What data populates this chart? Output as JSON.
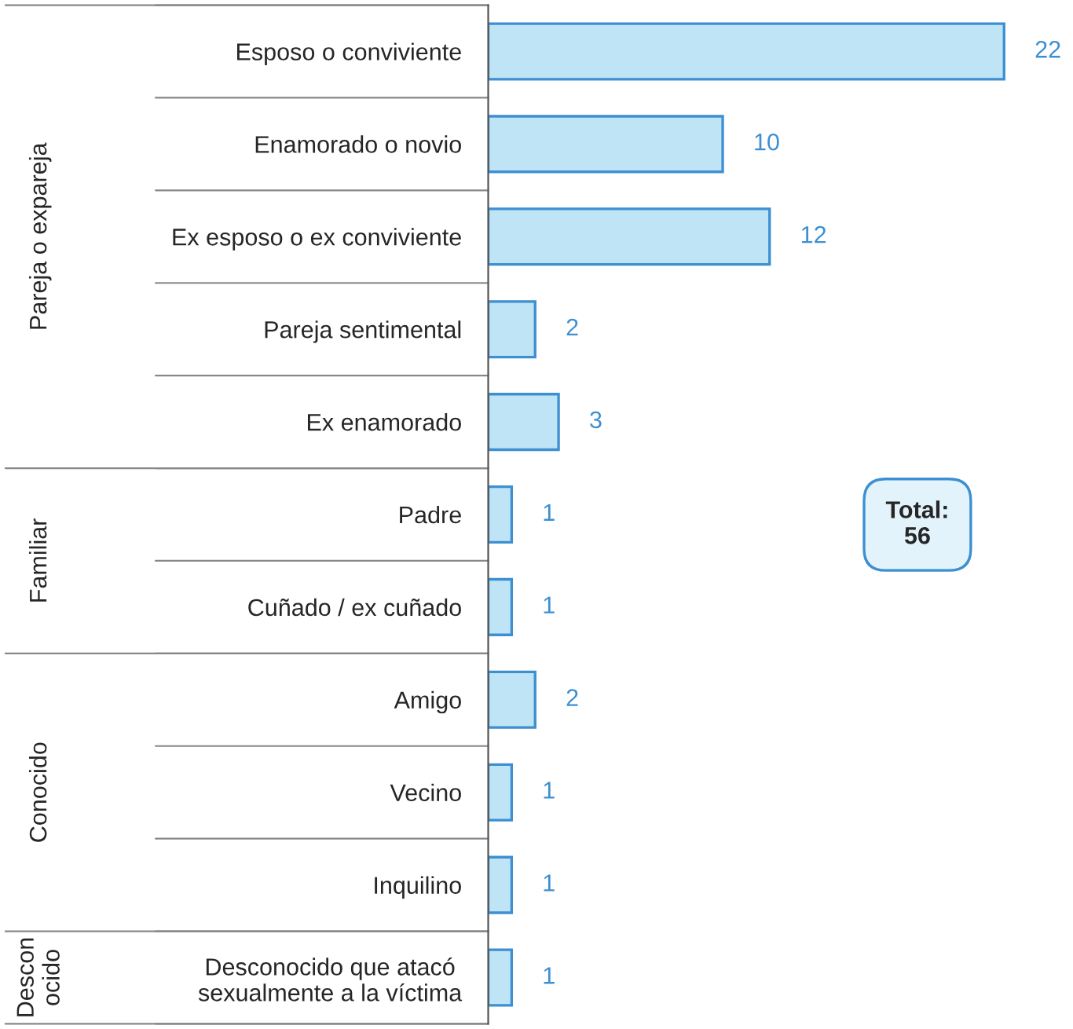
{
  "chart_data": {
    "type": "bar",
    "orientation": "horizontal",
    "categories": [
      "Esposo o conviviente",
      "Enamorado o novio",
      "Ex esposo o ex conviviente",
      "Pareja sentimental",
      "Ex enamorado",
      "Padre",
      "Cuñado / ex cuñado",
      "Amigo",
      "Vecino",
      "Inquilino",
      "Desconocido que atacó\nsexualmente a la víctima"
    ],
    "values": [
      22,
      10,
      12,
      2,
      3,
      1,
      1,
      2,
      1,
      1,
      1
    ],
    "color": "#bfe4f6",
    "data_labels": true,
    "tick_labels": "y",
    "annotations": [
      "Pareja o expareja",
      "Familiar",
      "Conocido",
      "Descon\nocido",
      "Total:\n56"
    ]
  }
}
